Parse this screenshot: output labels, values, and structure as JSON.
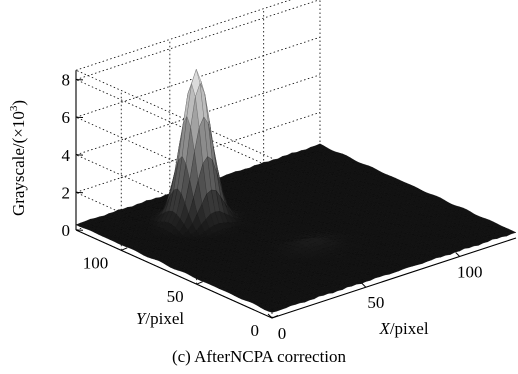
{
  "chart_data": {
    "type": "surface3d",
    "caption": "(c) AfterNCPA correction",
    "zlabel": "Grayscale/(×10³)",
    "zlabel_main": "Grayscale/(×10",
    "zlabel_exp": "3",
    "zlabel_close": ")",
    "xlabel_var": "X",
    "xlabel_unit": "/pixel",
    "ylabel_var": "Y",
    "ylabel_unit": "/pixel",
    "x_ticks": [
      0,
      50,
      100
    ],
    "y_ticks": [
      0,
      50,
      100
    ],
    "z_ticks": [
      0,
      2,
      4,
      6,
      8
    ],
    "xlim": [
      0,
      130
    ],
    "ylim": [
      0,
      130
    ],
    "zlim": [
      0,
      8.5
    ],
    "grid": true,
    "colormap": "gray",
    "peak": {
      "x": 40,
      "y": 100,
      "z": 8.0,
      "sigma_x": 6,
      "sigma_y": 6
    },
    "secondary_bump": {
      "x": 58,
      "y": 45,
      "z": 0.35,
      "sigma_x": 8,
      "sigma_y": 6
    },
    "background_level": 0.3
  }
}
